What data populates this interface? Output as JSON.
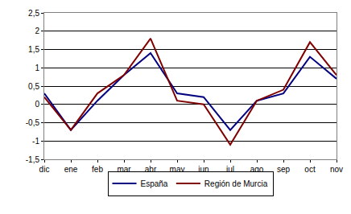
{
  "chart_data": {
    "type": "line",
    "categories": [
      "dic",
      "ene",
      "feb",
      "mar",
      "abr",
      "may",
      "jun",
      "jul",
      "ago",
      "sep",
      "oct",
      "nov"
    ],
    "series": [
      {
        "name": "España",
        "color": "#000080",
        "values": [
          0.3,
          -0.7,
          0.1,
          0.8,
          1.4,
          0.3,
          0.2,
          -0.7,
          0.1,
          0.3,
          1.3,
          0.7
        ]
      },
      {
        "name": "Región de Murcia",
        "color": "#800000",
        "values": [
          0.2,
          -0.7,
          0.3,
          0.8,
          1.8,
          0.1,
          0.0,
          -1.1,
          0.1,
          0.4,
          1.7,
          0.8
        ]
      }
    ],
    "ylim": [
      -1.5,
      2.5
    ],
    "yticks": [
      {
        "value": -1.5,
        "label": "-1,5"
      },
      -1,
      {
        "value": -0.5,
        "label": "-0,5"
      },
      0,
      {
        "value": 0.5,
        "label": "0,5"
      },
      1,
      {
        "value": 1.5,
        "label": "1,5"
      },
      2,
      {
        "value": 2.5,
        "label": "2,5"
      }
    ],
    "grid": true,
    "legend": "bottom"
  }
}
